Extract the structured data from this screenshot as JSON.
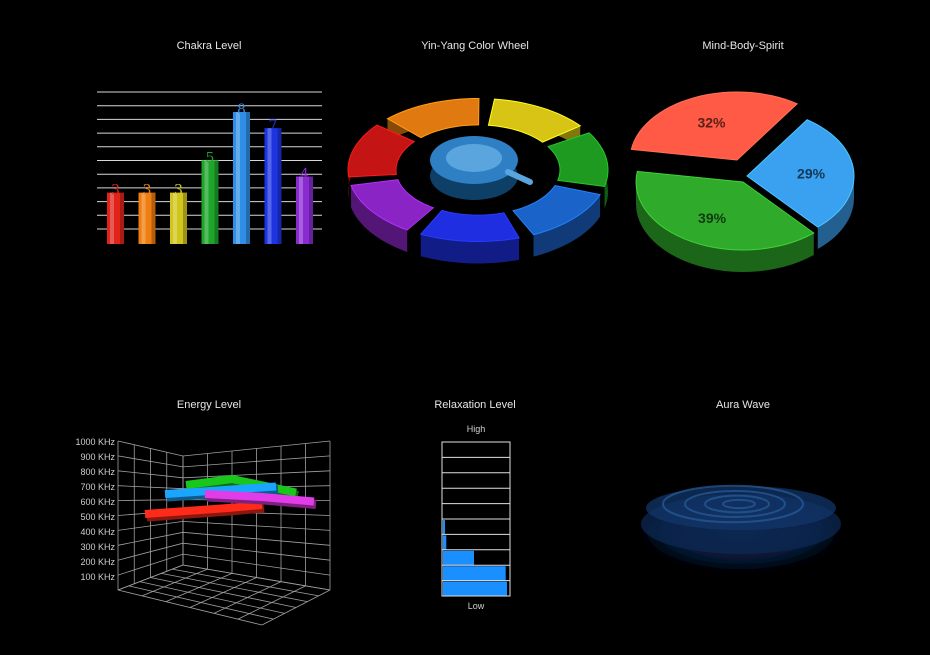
{
  "panels": {
    "chakra": {
      "title": "Chakra Level"
    },
    "wheel": {
      "title": "Yin-Yang Color Wheel"
    },
    "mbs": {
      "title": "Mind-Body-Spirit"
    },
    "energy": {
      "title": "Energy Level"
    },
    "relax": {
      "title": "Relaxation Level"
    },
    "aura": {
      "title": "Aura Wave"
    }
  },
  "chart_data": [
    {
      "type": "bar",
      "title": "Chakra Level",
      "values": [
        3,
        3,
        3,
        5,
        8,
        7,
        4
      ],
      "colors": [
        "#e0231b",
        "#f07d10",
        "#d2c51e",
        "#1fa52b",
        "#2f8fe6",
        "#1d34e0",
        "#8a2bd2"
      ],
      "ylim": [
        0,
        8
      ],
      "grid": true
    },
    {
      "type": "pie",
      "title": "Yin-Yang Color Wheel",
      "style": "ring",
      "colors": [
        "#c41414",
        "#e07a10",
        "#d8c414",
        "#1d9a1f",
        "#1a63c8",
        "#1e2ee0",
        "#8a24c4"
      ]
    },
    {
      "type": "pie",
      "title": "Mind-Body-Spirit",
      "slices": [
        {
          "label": "32%",
          "value": 32,
          "color": "#ff5a45"
        },
        {
          "label": "29%",
          "value": 29,
          "color": "#3aa0f0"
        },
        {
          "label": "39%",
          "value": 39,
          "color": "#2faa2a"
        }
      ]
    },
    {
      "type": "line",
      "title": "Energy Level",
      "ytick_labels": [
        "1000 KHz",
        "900 KHz",
        "800 KHz",
        "700 KHz",
        "600 KHz",
        "500 KHz",
        "400 KHz",
        "300 KHz",
        "200 KHz",
        "100 KHz"
      ],
      "series": [
        {
          "color": "#ff2a1a",
          "values": [
            560,
            600,
            620
          ]
        },
        {
          "color": "#19c61c",
          "values": [
            700,
            740,
            650
          ]
        },
        {
          "color": "#1aa6ff",
          "values": [
            640,
            660,
            690
          ]
        },
        {
          "color": "#e23ce8",
          "values": [
            640,
            620,
            590
          ]
        }
      ]
    },
    {
      "type": "bar",
      "title": "Relaxation Level",
      "orientation": "horizontal",
      "top_label": "High",
      "bottom_label": "Low",
      "values": [
        0,
        0,
        0,
        0,
        0,
        0.03,
        0.05,
        0.47,
        0.95,
        0.97
      ],
      "color": "#1a8fff"
    },
    {
      "type": "area",
      "title": "Aura Wave",
      "color": "#0d2a55"
    }
  ]
}
